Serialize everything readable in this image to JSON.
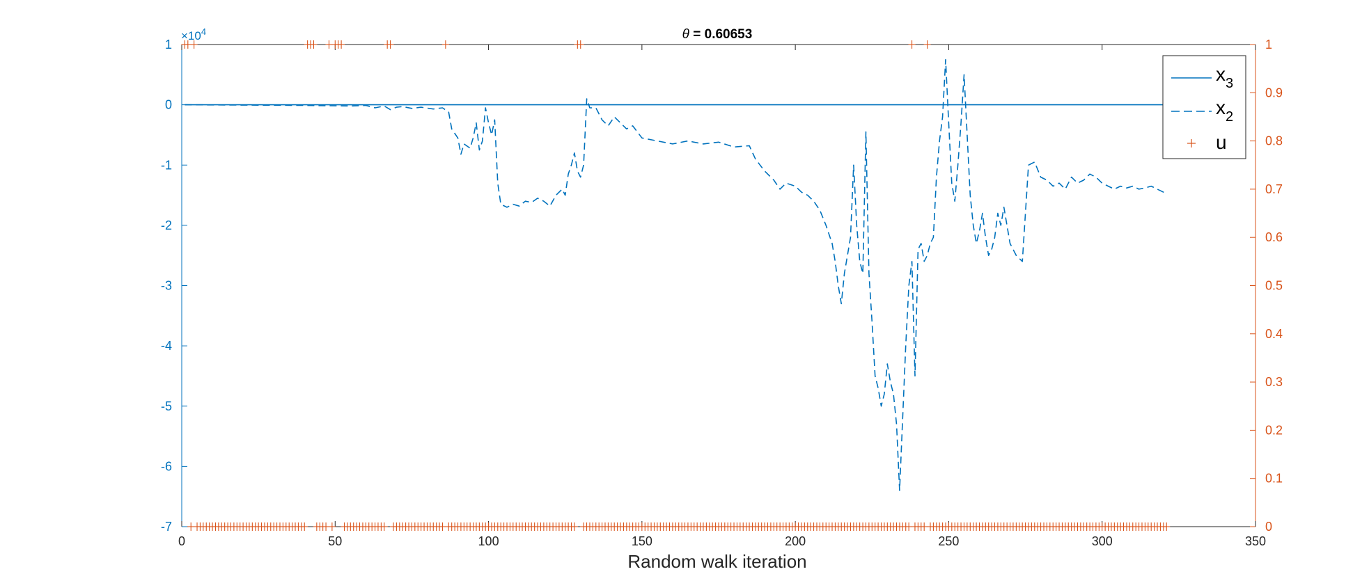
{
  "chart_data": {
    "type": "line",
    "title_prefix": "θ",
    "title_value": " = 0.60653",
    "xlabel": "Random walk iteration",
    "xlim": [
      0,
      350
    ],
    "xticks": [
      0,
      50,
      100,
      150,
      200,
      250,
      300,
      350
    ],
    "left_axis": {
      "ylim": [
        -7,
        1
      ],
      "yticks": [
        1,
        0,
        -1,
        -2,
        -3,
        -4,
        -5,
        -6,
        -7
      ],
      "exponent_base": "×10",
      "exponent_power": "4",
      "color": "#0072BD"
    },
    "right_axis": {
      "ylim": [
        0,
        1
      ],
      "yticks": [
        1,
        0.9,
        0.8,
        0.7,
        0.6,
        0.5,
        0.4,
        0.3,
        0.2,
        0.1,
        0
      ],
      "color": "#D95319"
    },
    "legend": {
      "location": "top-right",
      "entries": [
        {
          "label": "x",
          "sub": "3",
          "style": "solid"
        },
        {
          "label": "x",
          "sub": "2",
          "style": "dashed"
        },
        {
          "label": "u",
          "sub": "",
          "style": "marker"
        }
      ]
    },
    "series": [
      {
        "name": "x3",
        "axis": "left",
        "style": "solid",
        "color": "#0072BD",
        "points": [
          [
            1,
            0
          ],
          [
            321,
            0
          ]
        ]
      },
      {
        "name": "x2",
        "axis": "left",
        "style": "dashed",
        "color": "#0072BD",
        "points": [
          [
            1,
            0
          ],
          [
            40,
            -0.01
          ],
          [
            55,
            -0.02
          ],
          [
            60,
            -0.01
          ],
          [
            63,
            -0.05
          ],
          [
            66,
            -0.02
          ],
          [
            68,
            -0.08
          ],
          [
            70,
            -0.04
          ],
          [
            72,
            -0.03
          ],
          [
            75,
            -0.06
          ],
          [
            78,
            -0.04
          ],
          [
            82,
            -0.07
          ],
          [
            85,
            -0.05
          ],
          [
            87,
            -0.12
          ],
          [
            88,
            -0.4
          ],
          [
            90,
            -0.55
          ],
          [
            91,
            -0.82
          ],
          [
            92,
            -0.65
          ],
          [
            94,
            -0.72
          ],
          [
            95,
            -0.55
          ],
          [
            96,
            -0.3
          ],
          [
            97,
            -0.75
          ],
          [
            98,
            -0.6
          ],
          [
            99,
            -0.05
          ],
          [
            100,
            -0.3
          ],
          [
            101,
            -0.5
          ],
          [
            102,
            -0.25
          ],
          [
            103,
            -1.3
          ],
          [
            104,
            -1.65
          ],
          [
            106,
            -1.7
          ],
          [
            108,
            -1.65
          ],
          [
            110,
            -1.68
          ],
          [
            112,
            -1.6
          ],
          [
            114,
            -1.62
          ],
          [
            116,
            -1.55
          ],
          [
            118,
            -1.6
          ],
          [
            120,
            -1.68
          ],
          [
            122,
            -1.5
          ],
          [
            124,
            -1.4
          ],
          [
            125,
            -1.5
          ],
          [
            126,
            -1.15
          ],
          [
            127,
            -1.0
          ],
          [
            128,
            -0.8
          ],
          [
            129,
            -1.1
          ],
          [
            130,
            -1.2
          ],
          [
            131,
            -1.0
          ],
          [
            132,
            0.1
          ],
          [
            133,
            -0.05
          ],
          [
            135,
            -0.05
          ],
          [
            137,
            -0.25
          ],
          [
            139,
            -0.35
          ],
          [
            141,
            -0.2
          ],
          [
            143,
            -0.3
          ],
          [
            145,
            -0.4
          ],
          [
            147,
            -0.35
          ],
          [
            150,
            -0.55
          ],
          [
            155,
            -0.6
          ],
          [
            160,
            -0.65
          ],
          [
            165,
            -0.6
          ],
          [
            170,
            -0.65
          ],
          [
            175,
            -0.62
          ],
          [
            180,
            -0.7
          ],
          [
            185,
            -0.68
          ],
          [
            187,
            -0.9
          ],
          [
            190,
            -1.1
          ],
          [
            193,
            -1.25
          ],
          [
            195,
            -1.4
          ],
          [
            197,
            -1.3
          ],
          [
            200,
            -1.35
          ],
          [
            202,
            -1.45
          ],
          [
            204,
            -1.5
          ],
          [
            206,
            -1.6
          ],
          [
            208,
            -1.75
          ],
          [
            210,
            -2.0
          ],
          [
            212,
            -2.3
          ],
          [
            213,
            -2.6
          ],
          [
            214,
            -3.0
          ],
          [
            215,
            -3.3
          ],
          [
            216,
            -2.8
          ],
          [
            217,
            -2.5
          ],
          [
            218,
            -2.2
          ],
          [
            219,
            -1.0
          ],
          [
            220,
            -2.0
          ],
          [
            221,
            -2.6
          ],
          [
            222,
            -2.8
          ],
          [
            223,
            -0.45
          ],
          [
            224,
            -2.8
          ],
          [
            225,
            -3.6
          ],
          [
            226,
            -4.5
          ],
          [
            227,
            -4.7
          ],
          [
            228,
            -5.0
          ],
          [
            229,
            -4.8
          ],
          [
            230,
            -4.3
          ],
          [
            231,
            -4.6
          ],
          [
            232,
            -4.8
          ],
          [
            233,
            -5.3
          ],
          [
            234,
            -6.4
          ],
          [
            235,
            -5.2
          ],
          [
            236,
            -4.0
          ],
          [
            237,
            -3.0
          ],
          [
            238,
            -2.6
          ],
          [
            239,
            -4.5
          ],
          [
            240,
            -2.4
          ],
          [
            241,
            -2.3
          ],
          [
            242,
            -2.6
          ],
          [
            243,
            -2.5
          ],
          [
            244,
            -2.3
          ],
          [
            245,
            -2.2
          ],
          [
            246,
            -1.2
          ],
          [
            247,
            -0.6
          ],
          [
            248,
            -0.2
          ],
          [
            249,
            0.75
          ],
          [
            250,
            -0.3
          ],
          [
            251,
            -1.3
          ],
          [
            252,
            -1.6
          ],
          [
            253,
            -1.0
          ],
          [
            254,
            -0.3
          ],
          [
            255,
            0.5
          ],
          [
            256,
            -0.5
          ],
          [
            257,
            -1.5
          ],
          [
            258,
            -2.0
          ],
          [
            259,
            -2.3
          ],
          [
            260,
            -2.1
          ],
          [
            261,
            -1.8
          ],
          [
            262,
            -2.2
          ],
          [
            263,
            -2.5
          ],
          [
            264,
            -2.4
          ],
          [
            265,
            -2.2
          ],
          [
            266,
            -1.8
          ],
          [
            267,
            -2.0
          ],
          [
            268,
            -1.7
          ],
          [
            270,
            -2.3
          ],
          [
            272,
            -2.5
          ],
          [
            274,
            -2.6
          ],
          [
            276,
            -1.0
          ],
          [
            278,
            -0.95
          ],
          [
            280,
            -1.2
          ],
          [
            282,
            -1.25
          ],
          [
            284,
            -1.35
          ],
          [
            286,
            -1.3
          ],
          [
            288,
            -1.4
          ],
          [
            290,
            -1.2
          ],
          [
            292,
            -1.3
          ],
          [
            294,
            -1.25
          ],
          [
            296,
            -1.15
          ],
          [
            298,
            -1.2
          ],
          [
            300,
            -1.3
          ],
          [
            302,
            -1.35
          ],
          [
            304,
            -1.4
          ],
          [
            306,
            -1.35
          ],
          [
            308,
            -1.38
          ],
          [
            310,
            -1.35
          ],
          [
            312,
            -1.4
          ],
          [
            314,
            -1.38
          ],
          [
            316,
            -1.35
          ],
          [
            318,
            -1.4
          ],
          [
            320,
            -1.45
          ],
          [
            321,
            -1.5
          ]
        ]
      },
      {
        "name": "u",
        "axis": "right",
        "style": "marker",
        "marker": "+",
        "color": "#D95319",
        "ones_at": [
          1,
          2,
          4,
          41,
          42,
          43,
          48,
          50,
          51,
          52,
          67,
          68,
          86,
          129,
          130,
          238,
          243
        ],
        "zeros_range": [
          1,
          321
        ]
      }
    ]
  }
}
